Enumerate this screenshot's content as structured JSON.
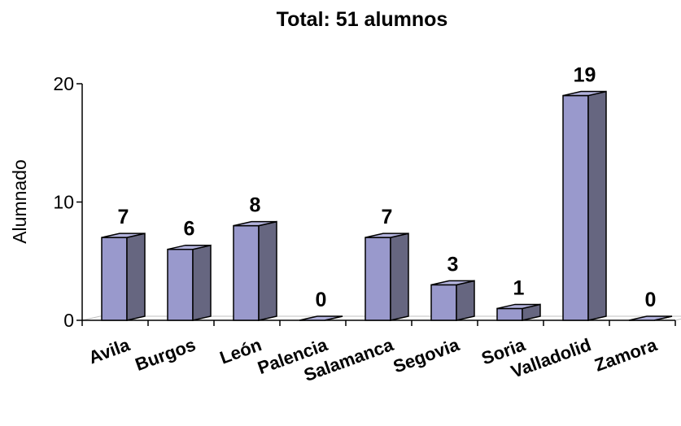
{
  "chart_data": {
    "type": "bar",
    "title": "Total: 51 alumnos",
    "xlabel": "",
    "ylabel": "Alumnado",
    "ylim": [
      0,
      20
    ],
    "yticks": [
      0,
      10,
      20
    ],
    "categories": [
      "Avila",
      "Burgos",
      "León",
      "Palencia",
      "Salamanca",
      "Segovia",
      "Soria",
      "Valladolid",
      "Zamora"
    ],
    "values": [
      7,
      6,
      8,
      0,
      7,
      3,
      1,
      19,
      0
    ],
    "grid": false,
    "legend": "none",
    "colors": {
      "bar_front": "#9999cc",
      "bar_side": "#666680",
      "bar_top": "#b3b3dd",
      "outline": "#000000"
    }
  }
}
